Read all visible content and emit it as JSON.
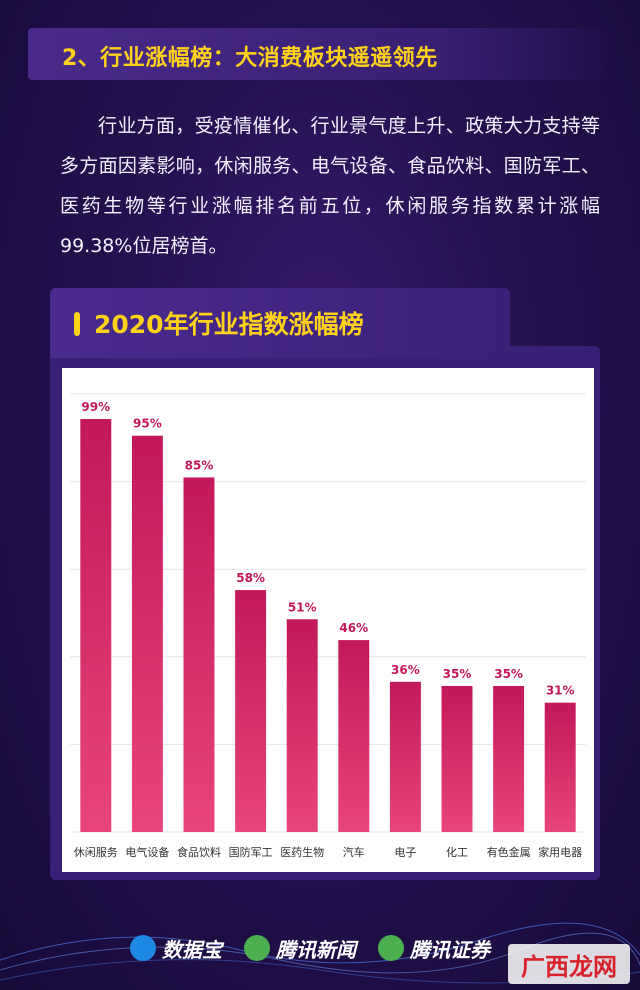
{
  "section": {
    "title": "2、行业涨幅榜：大消费板块遥遥领先"
  },
  "paragraph": "行业方面，受疫情催化、行业景气度上升、政策大力支持等多方面因素影响，休闲服务、电气设备、食品饮料、国防军工、医药生物等行业涨幅排名前五位，休闲服务指数累计涨幅99.38%位居榜首。",
  "chart_data": {
    "type": "bar",
    "title": "2020年行业指数涨幅榜",
    "categories": [
      "休闲服务",
      "电气设备",
      "食品饮料",
      "国防军工",
      "医药生物",
      "汽车",
      "电子",
      "化工",
      "有色金属",
      "家用电器"
    ],
    "values": [
      99,
      95,
      85,
      58,
      51,
      46,
      36,
      35,
      35,
      31
    ],
    "value_labels": [
      "99%",
      "95%",
      "85%",
      "58%",
      "51%",
      "46%",
      "36%",
      "35%",
      "35%",
      "31%"
    ],
    "ylim": [
      0,
      105
    ],
    "grid": true,
    "bar_color_start": "#c2185b",
    "bar_color_end": "#e8457a",
    "label_color": "#c2185b"
  },
  "footer": {
    "logos": [
      {
        "name": "数据宝",
        "icon": "data-bao-icon",
        "color": "#1e88e5"
      },
      {
        "name": "腾讯新闻",
        "icon": "tencent-news-icon",
        "color": "#4caf50"
      },
      {
        "name": "腾讯证券",
        "icon": "tencent-securities-icon",
        "color": "#4caf50"
      }
    ],
    "watermark": "广西龙网"
  }
}
